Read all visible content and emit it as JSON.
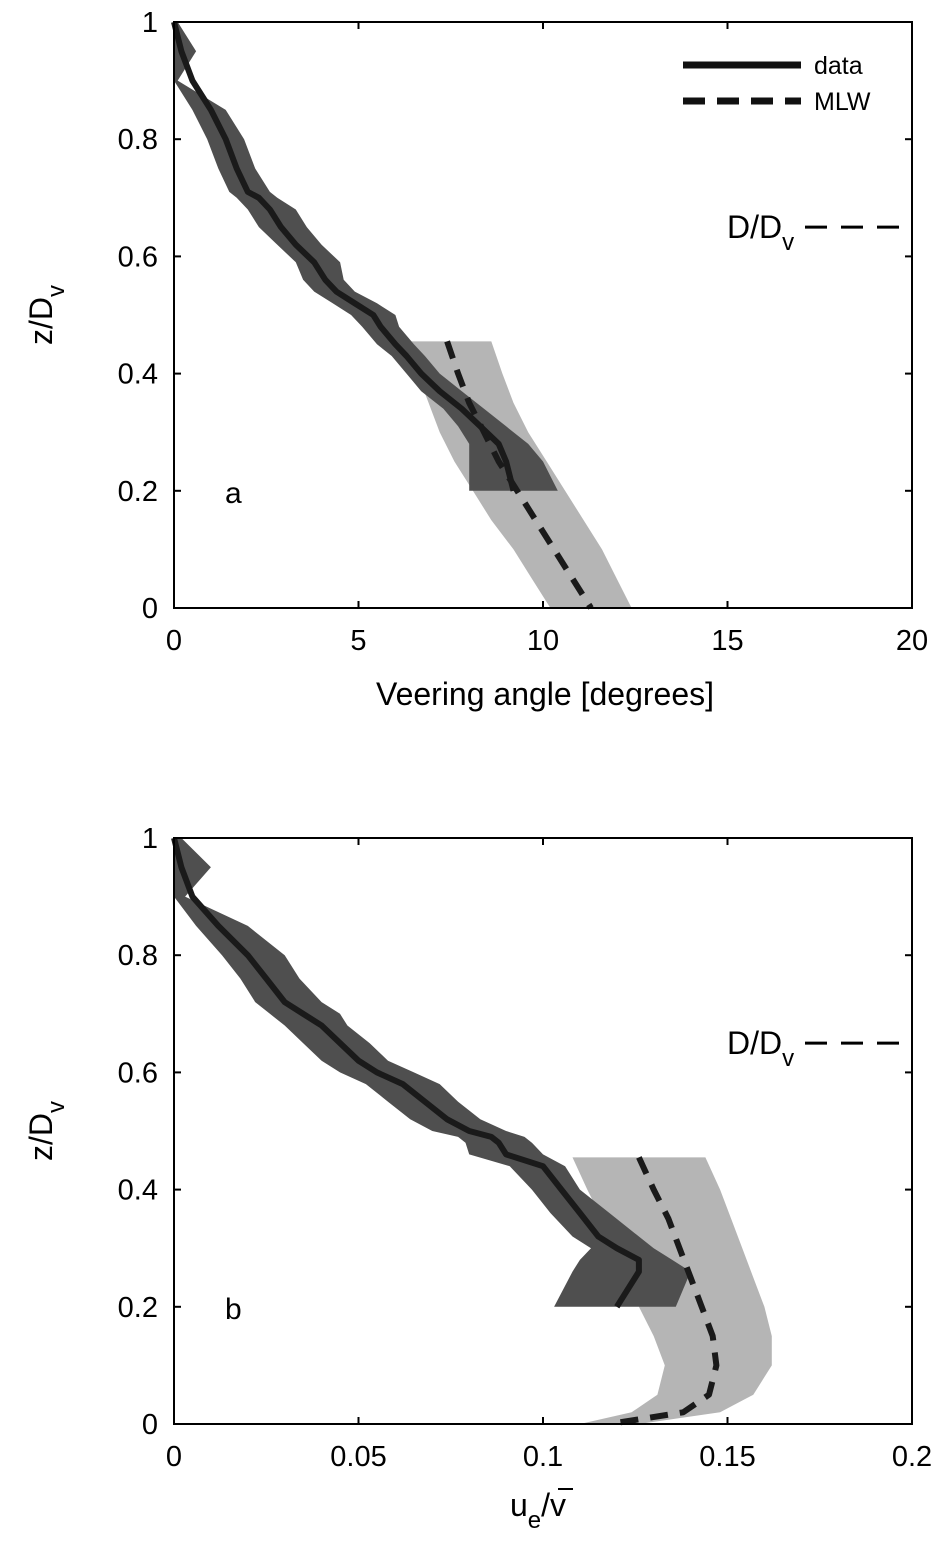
{
  "chart_data": [
    {
      "panel": "a",
      "type": "line",
      "xlabel": "Veering angle [degrees]",
      "ylabel": "z/D",
      "ylabel_sub": "v",
      "xlim": [
        0,
        20
      ],
      "ylim": [
        0,
        1
      ],
      "xticks": [
        0,
        5,
        10,
        15,
        20
      ],
      "xtick_labels": [
        "0",
        "5",
        "10",
        "15",
        "20"
      ],
      "yticks": [
        0,
        0.2,
        0.4,
        0.6,
        0.8,
        1
      ],
      "ytick_labels": [
        "0",
        "0.2",
        "0.4",
        "0.6",
        "0.8",
        "1"
      ],
      "panel_label": "a",
      "legend": {
        "placement": "top-right",
        "entries": [
          {
            "label": "data",
            "style": "solid"
          },
          {
            "label": "MLW",
            "style": "dashed"
          }
        ]
      },
      "reference_line": {
        "label": "D/D",
        "label_sub": "v",
        "y": 0.65,
        "style": "dashed"
      },
      "series": [
        {
          "name": "data",
          "style": "solid",
          "color": "#1a1a1a",
          "band_color": "#4f4f4f",
          "x": [
            0.0,
            0.2,
            0.5,
            1.0,
            1.4,
            1.7,
            2.0,
            2.3,
            2.6,
            2.9,
            3.3,
            3.8,
            4.1,
            4.4,
            4.9,
            5.4,
            5.6,
            6.0,
            6.3,
            6.7,
            7.2,
            7.8,
            8.3,
            8.8,
            9.0,
            9.2
          ],
          "y": [
            1.0,
            0.95,
            0.9,
            0.85,
            0.8,
            0.75,
            0.71,
            0.7,
            0.68,
            0.65,
            0.62,
            0.59,
            0.56,
            0.54,
            0.52,
            0.5,
            0.48,
            0.45,
            0.43,
            0.4,
            0.37,
            0.34,
            0.31,
            0.28,
            0.25,
            0.2
          ],
          "band_low": [
            0.0,
            0.0,
            0.0,
            0.5,
            0.9,
            1.2,
            1.5,
            1.7,
            2.0,
            2.3,
            2.8,
            3.3,
            3.5,
            3.8,
            4.3,
            4.8,
            5.1,
            5.5,
            5.9,
            6.3,
            6.7,
            7.3,
            7.7,
            8.0,
            8.0,
            8.0
          ],
          "band_high": [
            0.1,
            0.6,
            0.1,
            1.4,
            1.9,
            2.2,
            2.6,
            2.8,
            3.3,
            3.6,
            4.0,
            4.5,
            4.6,
            4.9,
            5.5,
            6.0,
            6.1,
            6.5,
            6.8,
            7.2,
            7.8,
            8.4,
            9.0,
            9.6,
            10.0,
            10.4
          ]
        },
        {
          "name": "MLW",
          "style": "dashed",
          "color": "#1a1a1a",
          "band_color": "#b5b5b5",
          "y": [
            0.455,
            0.4,
            0.35,
            0.3,
            0.25,
            0.2,
            0.15,
            0.1,
            0.05,
            0.0
          ],
          "x": [
            7.4,
            7.7,
            8.0,
            8.4,
            8.8,
            9.3,
            9.8,
            10.3,
            10.8,
            11.3
          ],
          "band_low": [
            6.2,
            6.6,
            6.9,
            7.2,
            7.6,
            8.1,
            8.6,
            9.2,
            9.7,
            10.2
          ],
          "band_high": [
            8.6,
            8.9,
            9.2,
            9.6,
            10.1,
            10.6,
            11.1,
            11.6,
            12.0,
            12.4
          ]
        }
      ]
    },
    {
      "panel": "b",
      "type": "line",
      "xlabel": "u",
      "xlabel_sub": "e",
      "xlabel_tail": "/v",
      "ylabel": "z/D",
      "ylabel_sub": "v",
      "xlim": [
        0,
        0.2
      ],
      "ylim": [
        0,
        1
      ],
      "xticks": [
        0,
        0.05,
        0.1,
        0.15,
        0.2
      ],
      "xtick_labels": [
        "0",
        "0.05",
        "0.1",
        "0.15",
        "0.2"
      ],
      "yticks": [
        0,
        0.2,
        0.4,
        0.6,
        0.8,
        1
      ],
      "ytick_labels": [
        "0",
        "0.2",
        "0.4",
        "0.6",
        "0.8",
        "1"
      ],
      "panel_label": "b",
      "reference_line": {
        "label": "D/D",
        "label_sub": "v",
        "y": 0.65,
        "style": "dashed"
      },
      "series": [
        {
          "name": "data",
          "style": "solid",
          "color": "#1a1a1a",
          "band_color": "#4f4f4f",
          "x": [
            0.0,
            0.002,
            0.005,
            0.012,
            0.02,
            0.025,
            0.03,
            0.035,
            0.04,
            0.045,
            0.05,
            0.055,
            0.062,
            0.068,
            0.074,
            0.08,
            0.086,
            0.088,
            0.09,
            0.1,
            0.105,
            0.11,
            0.115,
            0.12,
            0.126,
            0.126,
            0.12
          ],
          "y": [
            1.0,
            0.95,
            0.9,
            0.85,
            0.8,
            0.76,
            0.72,
            0.7,
            0.68,
            0.65,
            0.62,
            0.6,
            0.58,
            0.55,
            0.52,
            0.5,
            0.49,
            0.48,
            0.46,
            0.44,
            0.4,
            0.36,
            0.32,
            0.3,
            0.28,
            0.26,
            0.2
          ],
          "band_low": [
            0.0,
            0.0,
            0.0,
            0.006,
            0.013,
            0.018,
            0.022,
            0.026,
            0.03,
            0.035,
            0.04,
            0.045,
            0.052,
            0.058,
            0.064,
            0.07,
            0.077,
            0.079,
            0.08,
            0.091,
            0.097,
            0.102,
            0.108,
            0.113,
            0.11,
            0.108,
            0.103
          ],
          "band_high": [
            0.002,
            0.01,
            0.003,
            0.02,
            0.03,
            0.034,
            0.04,
            0.045,
            0.047,
            0.053,
            0.058,
            0.065,
            0.072,
            0.077,
            0.083,
            0.09,
            0.095,
            0.097,
            0.1,
            0.106,
            0.11,
            0.118,
            0.126,
            0.13,
            0.135,
            0.14,
            0.136
          ]
        },
        {
          "name": "MLW",
          "style": "dashed",
          "color": "#1a1a1a",
          "band_color": "#b5b5b5",
          "y": [
            0.455,
            0.4,
            0.35,
            0.3,
            0.25,
            0.2,
            0.15,
            0.1,
            0.05,
            0.02,
            0.0
          ],
          "x": [
            0.126,
            0.13,
            0.134,
            0.137,
            0.14,
            0.143,
            0.146,
            0.147,
            0.145,
            0.138,
            0.118
          ],
          "band_low": [
            0.108,
            0.112,
            0.116,
            0.119,
            0.122,
            0.126,
            0.13,
            0.133,
            0.131,
            0.124,
            0.11
          ],
          "band_high": [
            0.144,
            0.148,
            0.151,
            0.154,
            0.157,
            0.16,
            0.162,
            0.162,
            0.157,
            0.148,
            0.126
          ]
        }
      ]
    }
  ]
}
